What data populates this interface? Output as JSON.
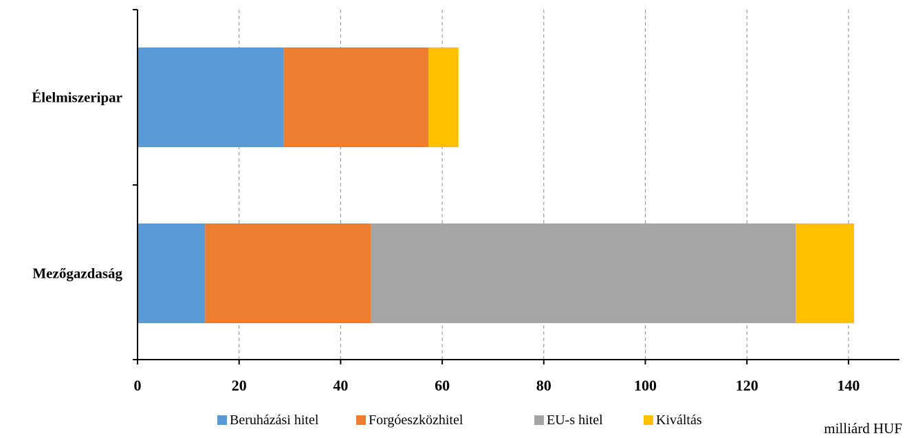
{
  "chart_data": {
    "type": "bar",
    "orientation": "horizontal",
    "stacked": true,
    "categories": [
      "Élelmiszeripar",
      "Mezőgazdaság"
    ],
    "series": [
      {
        "name": "Beruházási hitel",
        "color": "#5B9BD5",
        "values": [
          28.8,
          13.3
        ]
      },
      {
        "name": "Forgóeszközhitel",
        "color": "#ED7D31",
        "values": [
          28.5,
          32.7
        ]
      },
      {
        "name": "EU-s hitel",
        "color": "#A5A5A5",
        "values": [
          0,
          83.6
        ]
      },
      {
        "name": "Kiváltás",
        "color": "#FFC000",
        "values": [
          5.9,
          11.5
        ]
      }
    ],
    "xlim": [
      0,
      150
    ],
    "xticks": [
      0,
      20,
      40,
      60,
      80,
      100,
      120,
      140
    ],
    "xlabel": "milliárd HUF",
    "grid": "vertical dashed",
    "legend_position": "bottom"
  }
}
